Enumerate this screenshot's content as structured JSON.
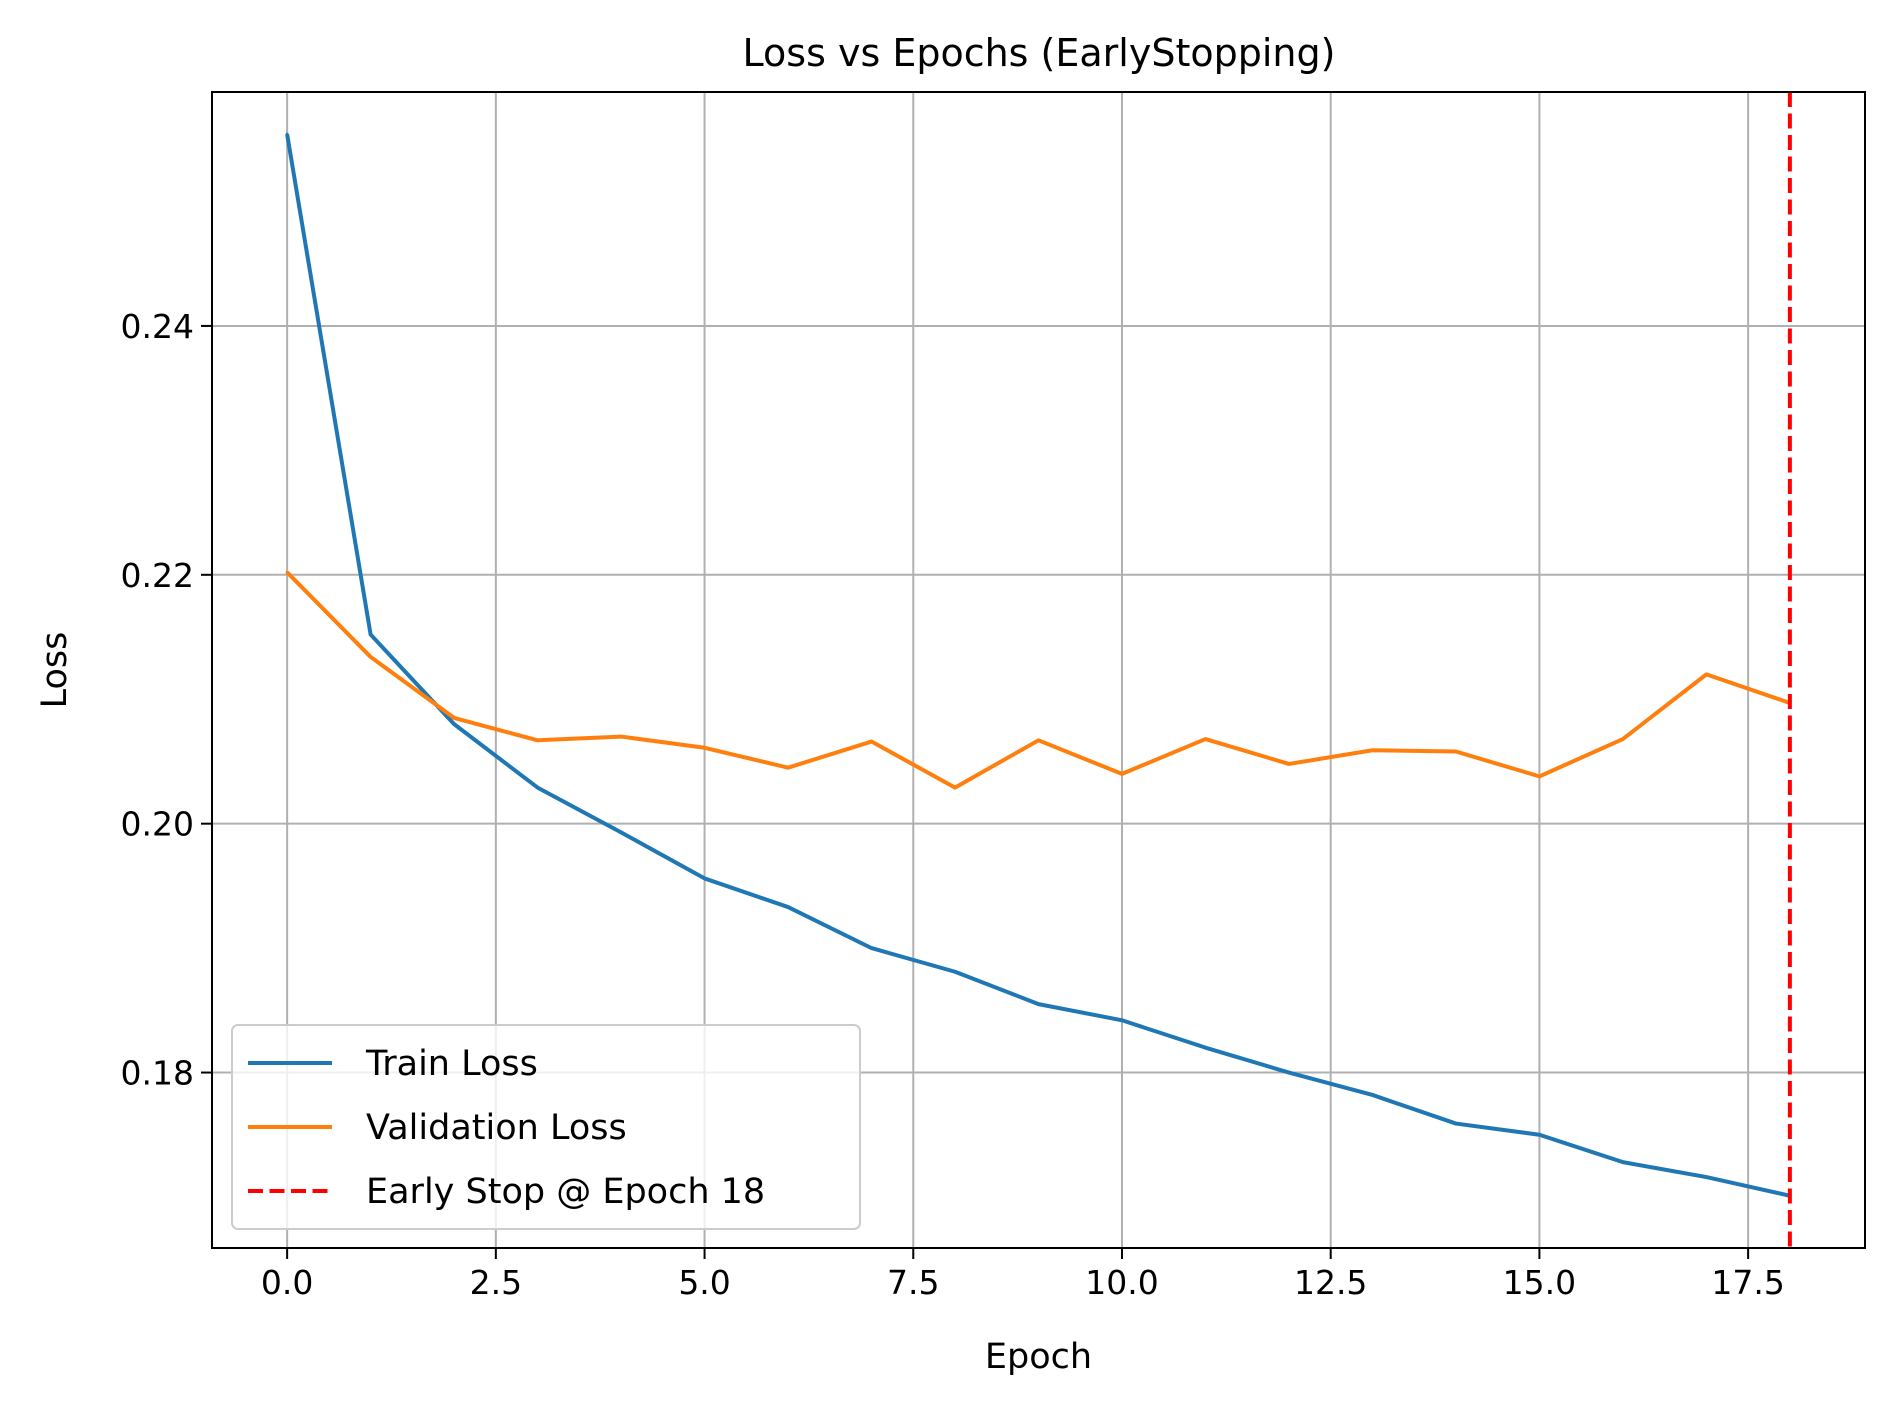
{
  "chart_data": {
    "type": "line",
    "title": "Loss vs Epochs (EarlyStopping)",
    "xlabel": "Epoch",
    "ylabel": "Loss",
    "xlim": [
      -0.9,
      18.9
    ],
    "ylim": [
      0.1659,
      0.2588
    ],
    "xticks": [
      0.0,
      2.5,
      5.0,
      7.5,
      10.0,
      12.5,
      15.0,
      17.5
    ],
    "xtick_labels": [
      "0.0",
      "2.5",
      "5.0",
      "7.5",
      "10.0",
      "12.5",
      "15.0",
      "17.5"
    ],
    "yticks": [
      0.18,
      0.2,
      0.22,
      0.24
    ],
    "ytick_labels": [
      "0.18",
      "0.20",
      "0.22",
      "0.24"
    ],
    "grid": true,
    "legend_position": "lower-left",
    "x": [
      0,
      1,
      2,
      3,
      4,
      5,
      6,
      7,
      8,
      9,
      10,
      11,
      12,
      13,
      14,
      15,
      16,
      17,
      18
    ],
    "series": [
      {
        "name": "Train Loss",
        "color": "#1f77b4",
        "values": [
          0.2554,
          0.2152,
          0.208,
          0.2029,
          0.1993,
          0.1956,
          0.1933,
          0.19,
          0.1881,
          0.1855,
          0.1842,
          0.182,
          0.18,
          0.1782,
          0.1759,
          0.175,
          0.1728,
          0.1716,
          0.1701
        ]
      },
      {
        "name": "Validation Loss",
        "color": "#ff7f0e",
        "values": [
          0.2202,
          0.2134,
          0.2085,
          0.2067,
          0.207,
          0.2061,
          0.2045,
          0.2066,
          0.2029,
          0.2067,
          0.204,
          0.2068,
          0.2048,
          0.2059,
          0.2058,
          0.2038,
          0.2068,
          0.212,
          0.2097
        ]
      }
    ],
    "vlines": [
      {
        "name": "Early Stop @ Epoch 18",
        "x": 18,
        "color": "#ff0000",
        "style": "dashed"
      }
    ]
  }
}
